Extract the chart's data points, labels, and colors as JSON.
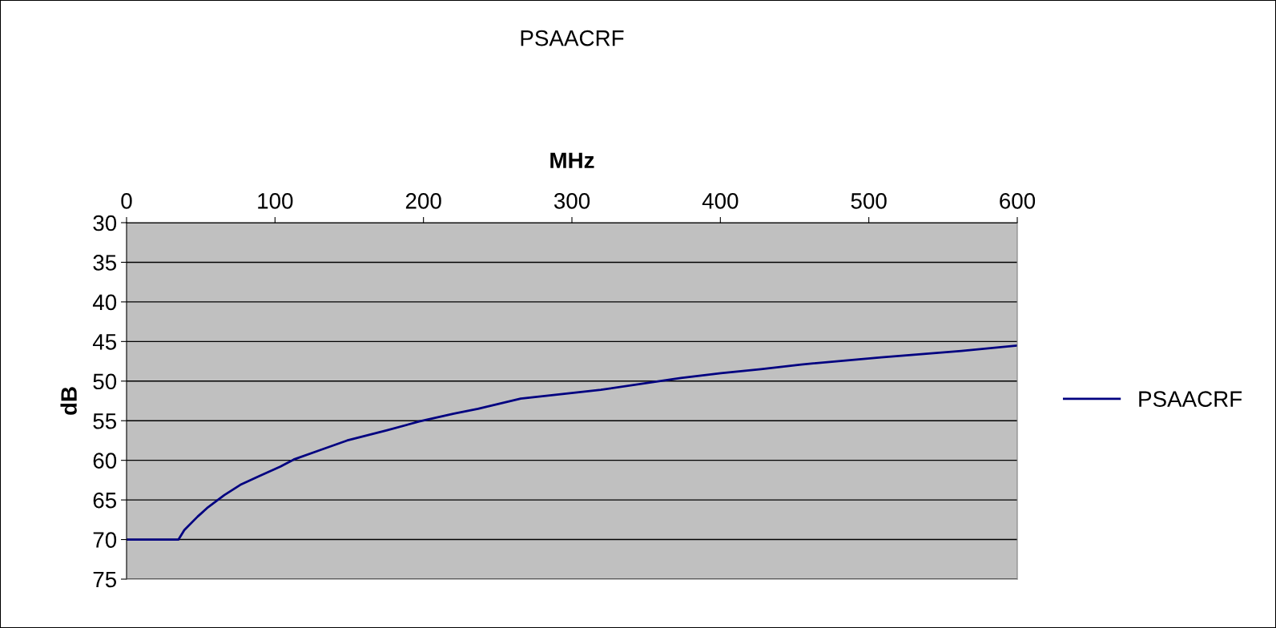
{
  "chart_data": {
    "type": "line",
    "title": "PSAACRF",
    "xlabel": "MHz",
    "ylabel": "dB",
    "x": [
      0,
      35,
      38.9,
      47.9,
      55,
      65.8,
      76.6,
      89.2,
      103.6,
      112.6,
      130.6,
      148.5,
      175.5,
      197.1,
      220.5,
      236.7,
      265.5,
      319.5,
      373.4,
      400.4,
      427.4,
      454.4,
      508.4,
      562.3,
      600
    ],
    "series": [
      {
        "name": "PSAACRF",
        "color": "#000080",
        "values": [
          70,
          70,
          68.8,
          67.1,
          65.9,
          64.4,
          63.1,
          62.0,
          60.8,
          59.9,
          58.7,
          57.5,
          56.2,
          55.1,
          54.1,
          53.5,
          52.2,
          51.1,
          49.6,
          49.0,
          48.5,
          47.9,
          47.0,
          46.2,
          45.5
        ]
      }
    ],
    "xlim": [
      0,
      600
    ],
    "xticks": [
      0,
      100,
      200,
      300,
      400,
      500,
      600
    ],
    "ylim": [
      75,
      30
    ],
    "yticks": [
      30,
      35,
      40,
      45,
      50,
      55,
      60,
      65,
      70,
      75
    ],
    "grid": "y",
    "legend": "right",
    "line_style": "solid",
    "marker": "none"
  }
}
